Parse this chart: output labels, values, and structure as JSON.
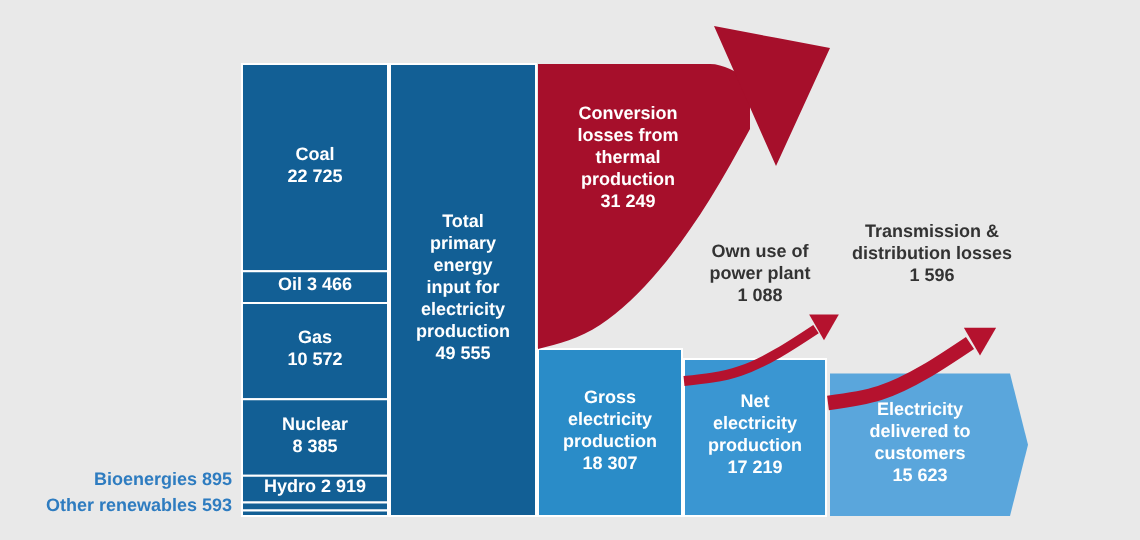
{
  "chart_data": {
    "type": "other",
    "categories": [
      "Coal",
      "Oil",
      "Gas",
      "Nuclear",
      "Hydro",
      "Bioenergies",
      "Other renewables",
      "Total primary energy input for electricity production",
      "Conversion losses from thermal production",
      "Gross electricity production",
      "Own use of power plant",
      "Net electricity production",
      "Transmission & distribution losses",
      "Electricity delivered to customers"
    ],
    "values": [
      22725,
      3466,
      10572,
      8385,
      2919,
      895,
      593,
      49555,
      31249,
      18307,
      1088,
      17219,
      1596,
      15623
    ],
    "value_labels": [
      "22 725",
      "3 466",
      "10 572",
      "8 385",
      "2 919",
      "895",
      "593",
      "49 555",
      "31 249",
      "18 307",
      "1 088",
      "17 219",
      "1 596",
      "15 623"
    ],
    "colors": [
      "#125f95",
      "#125f95",
      "#125f95",
      "#125f95",
      "#125f95",
      "#125f95",
      "#125f95",
      "#125f95",
      "#a60f2b",
      "#2a8cc8",
      "#b5122e",
      "#3a96d2",
      "#b5122e",
      "#5aa6dc"
    ]
  }
}
